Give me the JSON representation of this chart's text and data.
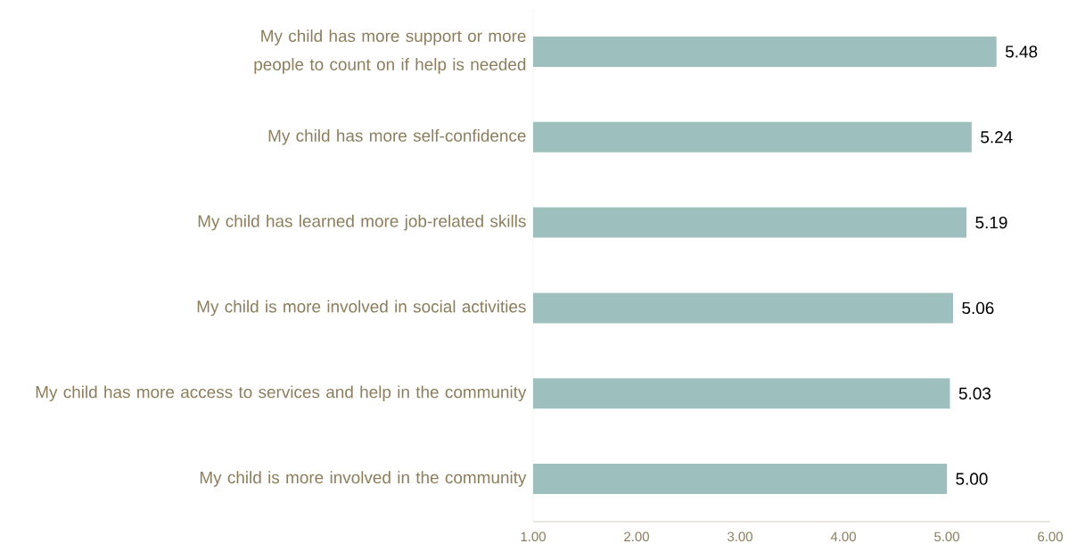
{
  "chart_data": {
    "type": "bar",
    "orientation": "horizontal",
    "categories": [
      "My child has more support or more people to count on if help is needed",
      "My child has more self-confidence",
      "My child has learned more job-related skills",
      "My child is more involved in social activities",
      "My child has more access to services and help in the community",
      "My child is more involved in the community"
    ],
    "values": [
      5.48,
      5.24,
      5.19,
      5.06,
      5.03,
      5.0
    ],
    "value_labels": [
      "5.48",
      "5.24",
      "5.19",
      "5.06",
      "5.03",
      "5.00"
    ],
    "color": "#9dbfbe",
    "xlim": [
      1,
      6
    ],
    "xticks": [
      {
        "value": 1,
        "label": "1.00"
      },
      {
        "value": 2,
        "label": "2.00"
      },
      {
        "value": 3,
        "label": "3.00"
      },
      {
        "value": 4,
        "label": "4.00"
      },
      {
        "value": 5,
        "label": "5.00"
      },
      {
        "value": 6,
        "label": "6.00"
      }
    ],
    "grid": false
  }
}
